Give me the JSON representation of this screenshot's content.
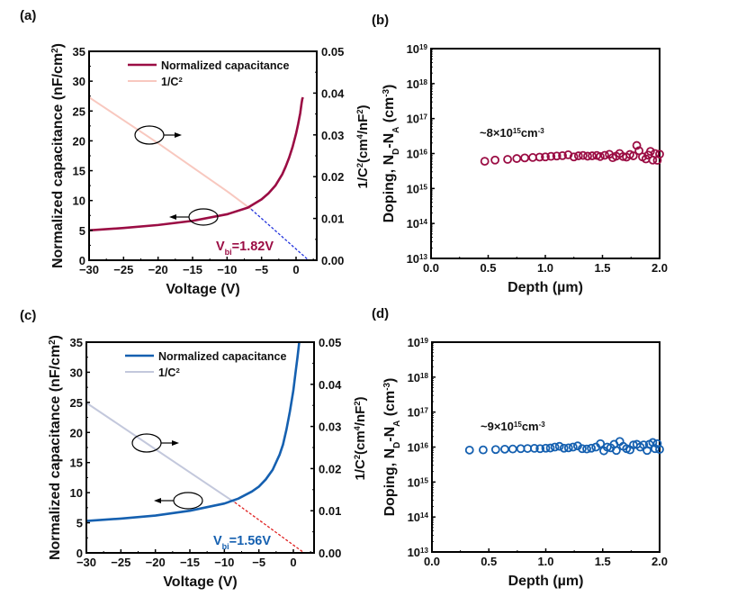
{
  "chart_data": [
    {
      "panel": "(a)",
      "type": "line",
      "xlabel": "Voltage (V)",
      "ylabel": "Normalized capacitance (nF/cm²)",
      "ylabel_right": "1/C²(cm⁴/nF²)",
      "xlim": [
        -30,
        3
      ],
      "ylim": [
        0,
        35
      ],
      "ylim_right": [
        0,
        0.05
      ],
      "xticks": [
        -30,
        -25,
        -20,
        -15,
        -10,
        -5,
        0
      ],
      "xtick_labels": [
        "−30",
        "−25",
        "−20",
        "−15",
        "−10",
        "−5",
        "0"
      ],
      "yticks": [
        0,
        5,
        10,
        15,
        20,
        25,
        30,
        35
      ],
      "yticks_right": [
        "0.00",
        "0.01",
        "0.02",
        "0.03",
        "0.04",
        "0.05"
      ],
      "legend": [
        "Normalized capacitance",
        "1/C²"
      ],
      "legend_position": "top-center",
      "annotation": "V_bi=1.82V",
      "vbi": 1.82,
      "colors": {
        "cap": "#9b0d44",
        "invc2": "#f8c8bf",
        "fit": "#2233dd",
        "annot": "#9b0d44"
      },
      "series": [
        {
          "name": "Normalized capacitance",
          "axis": "left",
          "x": [
            -30,
            -25,
            -20,
            -15,
            -10,
            -7,
            -5,
            -4,
            -3,
            -2,
            -1.5,
            -1,
            -0.5,
            0,
            0.3,
            0.6,
            0.8,
            0.9,
            1.0
          ],
          "y": [
            5.0,
            5.4,
            5.9,
            6.6,
            7.7,
            8.8,
            10.2,
            11.2,
            12.5,
            14.4,
            15.7,
            17.2,
            19.0,
            21.2,
            22.8,
            24.6,
            26.3,
            27.0,
            27.3
          ]
        },
        {
          "name": "1/C²",
          "axis": "right",
          "x": [
            -30,
            -20,
            -10,
            -6.5
          ],
          "y": [
            0.039,
            0.028,
            0.0165,
            0.0122
          ]
        },
        {
          "name": "linear fit",
          "axis": "right",
          "style": "dashed",
          "x": [
            -6.5,
            1.82
          ],
          "y": [
            0.0122,
            0.0
          ]
        }
      ]
    },
    {
      "panel": "(b)",
      "type": "scatter",
      "xlabel": "Depth (µm)",
      "ylabel": "Doping, N_D-N_A (cm⁻³)",
      "xlim": [
        0.0,
        2.0
      ],
      "ylim_log10": [
        13,
        19
      ],
      "xtick_labels": [
        "0.0",
        "0.5",
        "1.0",
        "1.5",
        "2.0"
      ],
      "ytick_exponents": [
        13,
        14,
        15,
        16,
        17,
        18,
        19
      ],
      "annotation": "~8×10¹⁵cm⁻³",
      "color": "#9b0d44",
      "series": [
        {
          "name": "doping",
          "x": [
            0.47,
            0.56,
            0.67,
            0.75,
            0.82,
            0.89,
            0.95,
            1.0,
            1.05,
            1.1,
            1.15,
            1.2,
            1.25,
            1.29,
            1.33,
            1.37,
            1.41,
            1.45,
            1.48,
            1.52,
            1.56,
            1.59,
            1.62,
            1.65,
            1.68,
            1.71,
            1.74,
            1.77,
            1.8,
            1.82,
            1.85,
            1.88,
            1.9,
            1.92,
            1.94,
            1.96,
            1.98,
            2.0
          ],
          "y": [
            6000000000000000.0,
            6500000000000000.0,
            6800000000000000.0,
            7200000000000000.0,
            7500000000000000.0,
            7700000000000000.0,
            7900000000000000.0,
            8000000000000000.0,
            8300000000000000.0,
            8500000000000000.0,
            8700000000000000.0,
            9200000000000000.0,
            8000000000000000.0,
            8600000000000000.0,
            8800000000000000.0,
            8400000000000000.0,
            8600000000000000.0,
            8800000000000000.0,
            8200000000000000.0,
            8900000000000000.0,
            9500000000000000.0,
            7600000000000000.0,
            8400000000000000.0,
            1e+16,
            8200000000000000.0,
            7900000000000000.0,
            9400000000000000.0,
            8600000000000000.0,
            1.7e+16,
            1.2e+16,
            8000000000000000.0,
            7000000000000000.0,
            9000000000000000.0,
            1.15e+16,
            6500000000000000.0,
            1e+16,
            6400000000000000.0,
            9600000000000000.0
          ]
        }
      ]
    },
    {
      "panel": "(c)",
      "type": "line",
      "xlabel": "Voltage (V)",
      "ylabel": "Normalized capacitance (nF/cm²)",
      "ylabel_right": "1/C²(cm⁴/nF²)",
      "xlim": [
        -30,
        3
      ],
      "ylim": [
        0,
        35
      ],
      "ylim_right": [
        0,
        0.05
      ],
      "xticks": [
        -30,
        -25,
        -20,
        -15,
        -10,
        -5,
        0
      ],
      "xtick_labels": [
        "−30",
        "−25",
        "−20",
        "−15",
        "−10",
        "−5",
        "0"
      ],
      "yticks": [
        0,
        5,
        10,
        15,
        20,
        25,
        30,
        35
      ],
      "yticks_right": [
        "0.00",
        "0.01",
        "0.02",
        "0.03",
        "0.04",
        "0.05"
      ],
      "legend": [
        "Normalized capacitance",
        "1/C²"
      ],
      "legend_position": "top-center",
      "annotation": "V_bi=1.56V",
      "vbi": 1.56,
      "colors": {
        "cap": "#1560b0",
        "invc2": "#c3c8dc",
        "fit": "#e02020",
        "annot": "#1560b0"
      },
      "series": [
        {
          "name": "Normalized capacitance",
          "axis": "left",
          "x": [
            -30,
            -25,
            -20,
            -15,
            -10,
            -8,
            -6,
            -5,
            -4,
            -3,
            -2,
            -1.5,
            -1,
            -0.5,
            0,
            0.3,
            0.6,
            0.8,
            0.85
          ],
          "y": [
            5.3,
            5.7,
            6.2,
            7.0,
            8.2,
            9.0,
            10.2,
            11.0,
            12.2,
            13.8,
            16.3,
            18.0,
            20.5,
            23.5,
            27.0,
            29.8,
            32.5,
            34.5,
            35
          ]
        },
        {
          "name": "1/C²",
          "axis": "right",
          "x": [
            -30,
            -20,
            -10,
            -8.5
          ],
          "y": [
            0.0356,
            0.0246,
            0.0136,
            0.012
          ]
        },
        {
          "name": "linear fit",
          "axis": "right",
          "style": "dashed",
          "x": [
            -8.5,
            1.56
          ],
          "y": [
            0.012,
            0.0
          ]
        }
      ]
    },
    {
      "panel": "(d)",
      "type": "scatter",
      "xlabel": "Depth (µm)",
      "ylabel": "Doping, N_D-N_A (cm⁻³)",
      "xlim": [
        0.0,
        2.0
      ],
      "ylim_log10": [
        13,
        19
      ],
      "xtick_labels": [
        "0.0",
        "0.5",
        "1.0",
        "1.5",
        "2.0"
      ],
      "ytick_exponents": [
        13,
        14,
        15,
        16,
        17,
        18,
        19
      ],
      "annotation": "~9×10¹⁵cm⁻³",
      "color": "#1560b0",
      "series": [
        {
          "name": "doping",
          "x": [
            0.33,
            0.45,
            0.56,
            0.64,
            0.71,
            0.78,
            0.84,
            0.9,
            0.95,
            1.0,
            1.04,
            1.08,
            1.12,
            1.16,
            1.2,
            1.24,
            1.28,
            1.32,
            1.36,
            1.4,
            1.44,
            1.48,
            1.51,
            1.54,
            1.57,
            1.6,
            1.62,
            1.65,
            1.68,
            1.71,
            1.74,
            1.77,
            1.8,
            1.83,
            1.86,
            1.89,
            1.91,
            1.94,
            1.96,
            1.98,
            2.0
          ],
          "y": [
            8200000000000000.0,
            8300000000000000.0,
            8500000000000000.0,
            8700000000000000.0,
            8800000000000000.0,
            9000000000000000.0,
            9100000000000000.0,
            9200000000000000.0,
            9000000000000000.0,
            9300000000000000.0,
            9400000000000000.0,
            1e+16,
            1.05e+16,
            9300000000000000.0,
            9500000000000000.0,
            1e+16,
            1.08e+16,
            9000000000000000.0,
            8800000000000000.0,
            9300000000000000.0,
            1e+16,
            1.25e+16,
            7800000000000000.0,
            1e+16,
            9500000000000000.0,
            1.2e+16,
            8000000000000000.0,
            1.45e+16,
            1.05e+16,
            9000000000000000.0,
            8300000000000000.0,
            1.15e+16,
            1.2e+16,
            1e+16,
            1.15e+16,
            8000000000000000.0,
            1.2e+16,
            1.35e+16,
            9000000000000000.0,
            1.25e+16,
            8600000000000000.0
          ]
        }
      ]
    }
  ]
}
